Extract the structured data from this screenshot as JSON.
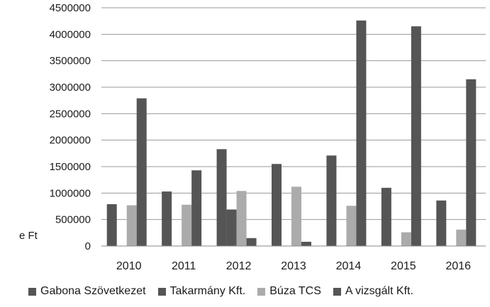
{
  "chart_data": {
    "type": "bar",
    "title": "",
    "xlabel": "",
    "ylabel": "e Ft",
    "ylim": [
      0,
      4500000
    ],
    "ytick_step": 500000,
    "grid": "horizontal",
    "legend_position": "bottom",
    "categories": [
      "2010",
      "2011",
      "2012",
      "2013",
      "2014",
      "2015",
      "2016"
    ],
    "series": [
      {
        "name": "Gabona Szövetkezet",
        "color": "#555555",
        "values": [
          790000,
          1030000,
          1830000,
          1550000,
          1710000,
          1100000,
          860000
        ]
      },
      {
        "name": "Takarmány Kft.",
        "color": "#555555",
        "values": [
          0,
          0,
          690000,
          0,
          0,
          0,
          0
        ]
      },
      {
        "name": "Búza TCS",
        "color": "#ababab",
        "values": [
          770000,
          780000,
          1040000,
          1120000,
          760000,
          260000,
          310000
        ]
      },
      {
        "name": "A vizsgált Kft.",
        "color": "#555555",
        "values": [
          2790000,
          1430000,
          150000,
          80000,
          4260000,
          4150000,
          3150000
        ]
      }
    ]
  }
}
